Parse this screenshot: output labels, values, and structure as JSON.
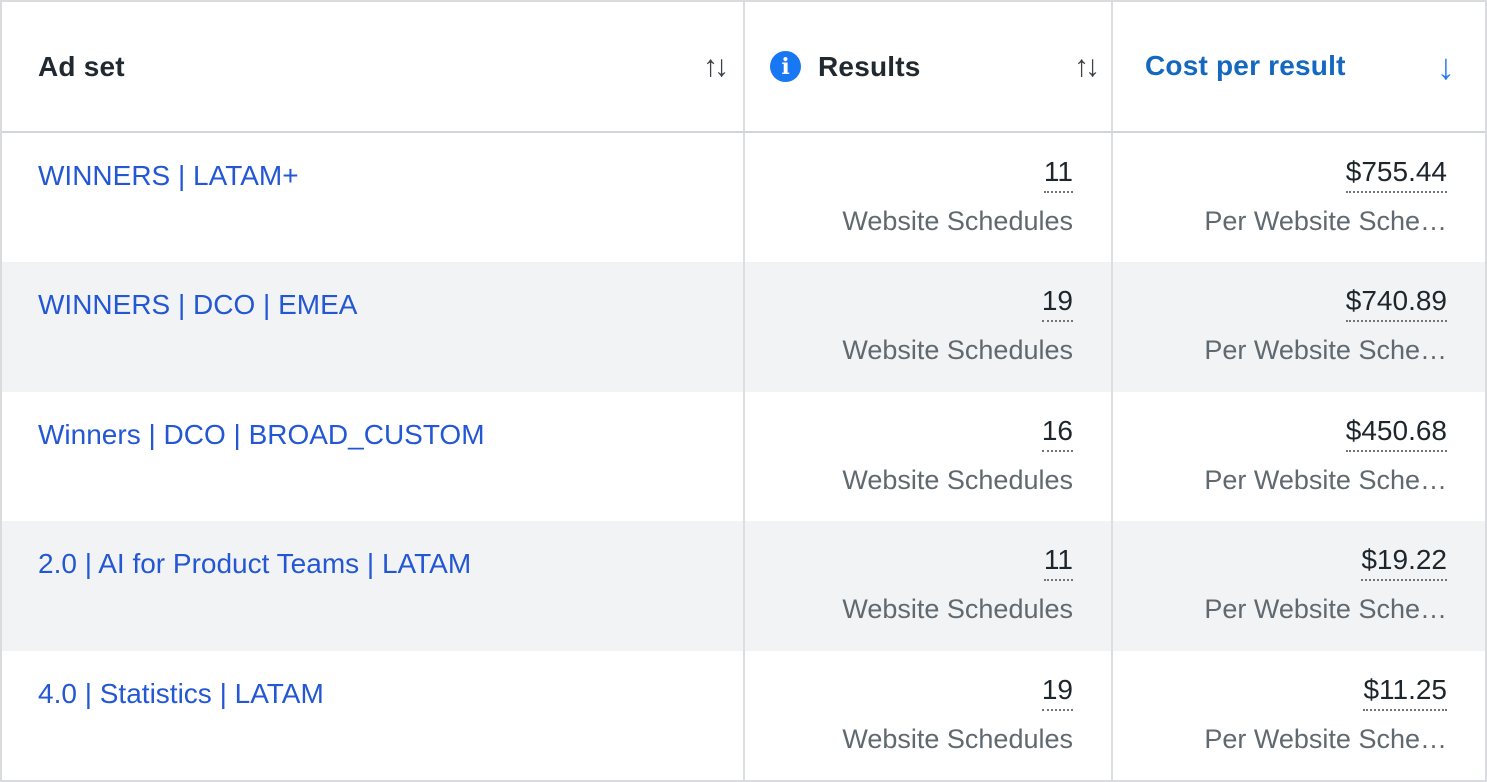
{
  "columns": {
    "ad_set": {
      "label": "Ad set",
      "sort_icon": "↑↓"
    },
    "results": {
      "label": "Results",
      "sort_icon": "↑↓",
      "info_glyph": "i"
    },
    "cost": {
      "label": "Cost per result",
      "sort_icon": "↓",
      "sort_direction": "descending"
    }
  },
  "rows": [
    {
      "name": "WINNERS | LATAM+",
      "results": "11",
      "results_type": "Website Schedules",
      "cost": "$755.44",
      "cost_type": "Per Website Sche…"
    },
    {
      "name": "WINNERS | DCO | EMEA",
      "results": "19",
      "results_type": "Website Schedules",
      "cost": "$740.89",
      "cost_type": "Per Website Sche…"
    },
    {
      "name": "Winners | DCO | BROAD_CUSTOM",
      "results": "16",
      "results_type": "Website Schedules",
      "cost": "$450.68",
      "cost_type": "Per Website Sche…"
    },
    {
      "name": "2.0 | AI for Product Teams | LATAM",
      "results": "11",
      "results_type": "Website Schedules",
      "cost": "$19.22",
      "cost_type": "Per Website Sche…"
    },
    {
      "name": "4.0 | Statistics | LATAM",
      "results": "19",
      "results_type": "Website Schedules",
      "cost": "$11.25",
      "cost_type": "Per Website Sche…"
    }
  ],
  "colors": {
    "link_blue": "#2357D4",
    "sorted_header_blue": "#1568BF",
    "sort_arrow_blue": "#2B7DF2",
    "info_icon_blue": "#1877F2",
    "row_stripe": "#F2F3F5",
    "primary_text": "#1D262C",
    "secondary_text": "#5F696F",
    "border": "#DCDEE2"
  }
}
